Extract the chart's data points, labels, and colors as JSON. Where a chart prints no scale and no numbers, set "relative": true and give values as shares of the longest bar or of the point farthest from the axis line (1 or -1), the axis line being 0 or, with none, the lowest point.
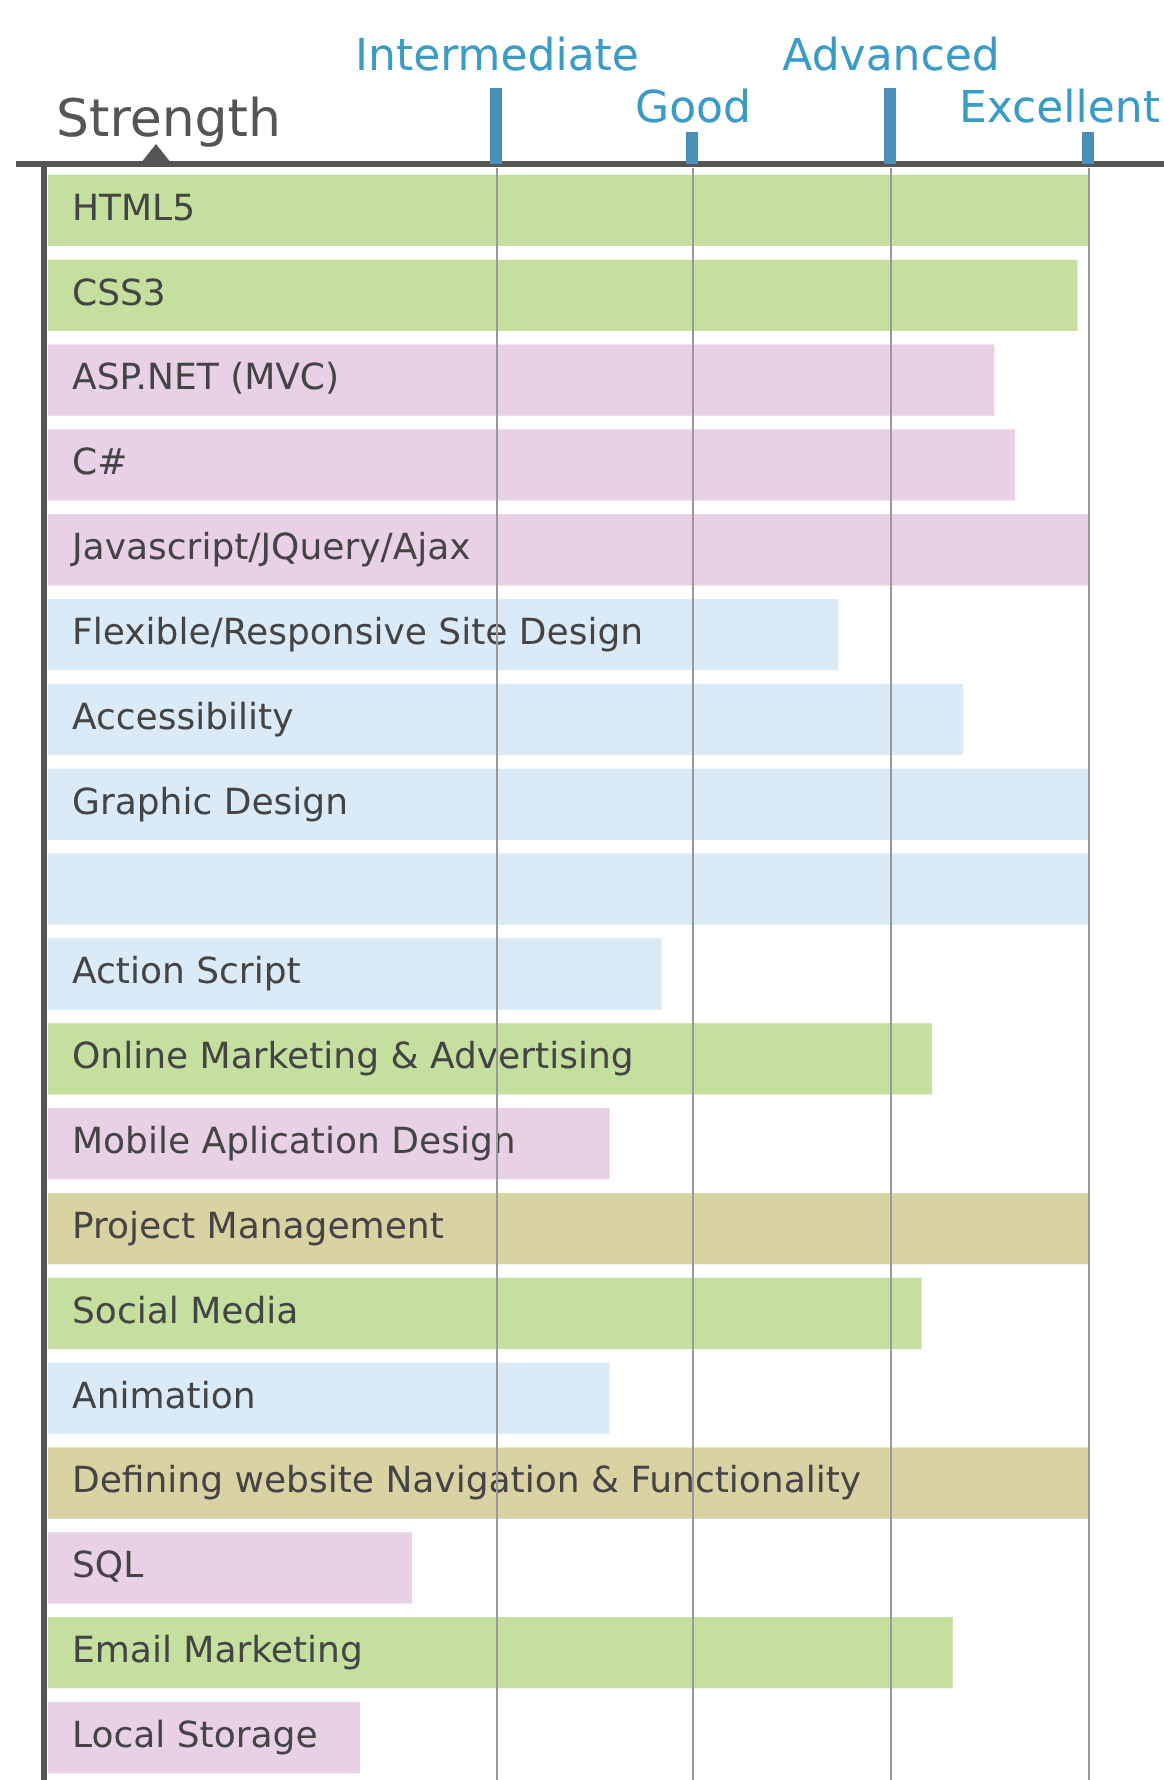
{
  "chart_data": {
    "type": "bar",
    "orientation": "horizontal",
    "relative": true,
    "xlabel": "Strength",
    "categories": [
      "HTML5",
      "CSS3",
      "ASP.NET (MVC)",
      "C#",
      "Javascript/JQuery/Ajax",
      "Flexible/Responsive Site Design",
      "Accessibility",
      "Graphic Design",
      null,
      "Action Script",
      "Online Marketing & Advertising",
      "Mobile Aplication Design",
      "Project Management",
      "Social Media",
      "Animation",
      "Defining website Navigation & Functionality",
      "SQL",
      "Email Marketing",
      "Local Storage"
    ],
    "values": [
      1,
      0.99,
      0.91,
      0.93,
      1,
      0.76,
      0.88,
      1,
      1,
      0.59,
      0.85,
      0.54,
      1,
      0.84,
      0.54,
      1,
      0.35,
      0.87,
      0.3
    ],
    "colors": [
      "#c5df9e",
      "#c5df9e",
      "#e8d1e5",
      "#e8d1e5",
      "#e8d1e5",
      "#daeaf7",
      "#daeaf7",
      "#daeaf7",
      "#daeaf7",
      "#daeaf7",
      "#c5df9e",
      "#e8d1e5",
      "#d9d3a3",
      "#c5df9e",
      "#daeaf7",
      "#d9d3a3",
      "#e8d1e5",
      "#c5df9e",
      "#e8d1e5"
    ],
    "ref_lines": [
      {
        "axis": "x",
        "value": 0.43,
        "label": "Intermediate"
      },
      {
        "axis": "x",
        "value": 0.62,
        "label": "Good"
      },
      {
        "axis": "x",
        "value": 0.81,
        "label": "Advanced"
      },
      {
        "axis": "x",
        "value": 1,
        "label": "Excellent"
      }
    ],
    "legend": false
  }
}
